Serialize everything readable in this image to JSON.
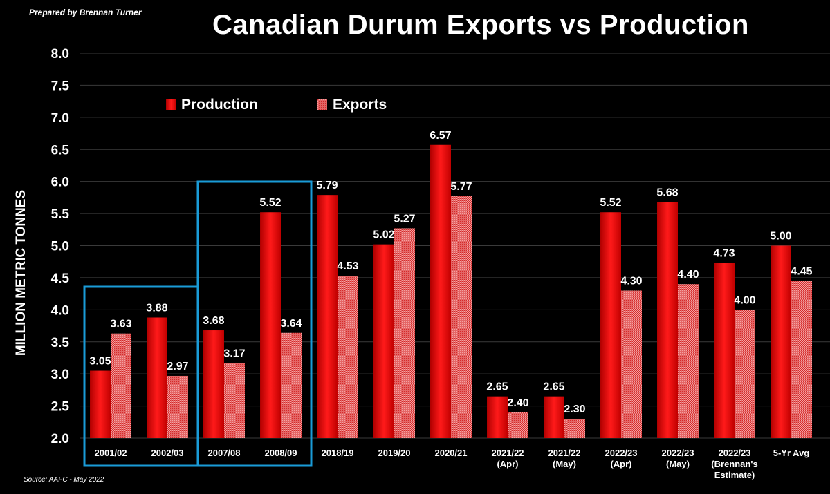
{
  "credit": "Prepared by Brennan Turner",
  "source": "Source: AAFC - May 2022",
  "colors": {
    "production": "#ff0000",
    "exports": "#e88080",
    "highlight": "#1a9bd7",
    "background": "#000000"
  },
  "chart_data": {
    "type": "bar",
    "title": "Canadian Durum Exports vs Production",
    "xlabel": "",
    "ylabel": "MILLION METRIC TONNES",
    "ylim": [
      2.0,
      8.0
    ],
    "yticks": [
      "2.0",
      "2.5",
      "3.0",
      "3.5",
      "4.0",
      "4.5",
      "5.0",
      "5.5",
      "6.0",
      "6.5",
      "7.0",
      "7.5",
      "8.0"
    ],
    "grid": true,
    "legend_position": "top-left",
    "categories": [
      [
        "2001/02"
      ],
      [
        "2002/03"
      ],
      [
        "2007/08"
      ],
      [
        "2008/09"
      ],
      [
        "2018/19"
      ],
      [
        "2019/20"
      ],
      [
        "2020/21"
      ],
      [
        "2021/22",
        "(Apr)"
      ],
      [
        "2021/22",
        "(May)"
      ],
      [
        "2022/23",
        "(Apr)"
      ],
      [
        "2022/23",
        "(May)"
      ],
      [
        "2022/23",
        "(Brennan's",
        "Estimate)"
      ],
      [
        "5-Yr Avg"
      ]
    ],
    "series": [
      {
        "name": "Production",
        "values": [
          3.05,
          3.88,
          3.68,
          5.52,
          5.79,
          5.02,
          6.57,
          2.65,
          2.65,
          5.52,
          5.68,
          4.73,
          5.0
        ],
        "labels": [
          "3.05",
          "3.88",
          "3.68",
          "5.52",
          "5.79",
          "5.02",
          "6.57",
          "2.65",
          "2.65",
          "5.52",
          "5.68",
          "4.73",
          "5.00"
        ]
      },
      {
        "name": "Exports",
        "values": [
          3.63,
          2.97,
          3.17,
          3.64,
          4.53,
          5.27,
          5.77,
          2.4,
          2.3,
          4.3,
          4.4,
          4.0,
          4.45
        ],
        "labels": [
          "3.63",
          "2.97",
          "3.17",
          "3.64",
          "4.53",
          "5.27",
          "5.77",
          "2.40",
          "2.30",
          "4.30",
          "4.40",
          "4.00",
          "4.45"
        ]
      }
    ],
    "highlight_groups": [
      [
        0,
        1
      ],
      [
        2,
        3
      ]
    ]
  }
}
